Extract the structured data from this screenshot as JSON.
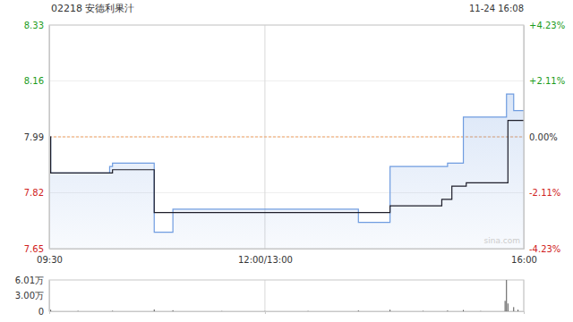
{
  "chart_data": [
    {
      "type": "line",
      "title": "02218 安德利果汁",
      "subtitle": "11-24 16:08",
      "annotation": "sina.com",
      "x": [
        0,
        1,
        42,
        44,
        73,
        86,
        215,
        237,
        273,
        277,
        280,
        288,
        290,
        318,
        319,
        323,
        330
      ],
      "xlim": [
        0,
        330
      ],
      "xticks": [
        {
          "value": 0,
          "label": "09:30"
        },
        {
          "value": 150,
          "label": "12:00/13:00"
        },
        {
          "value": 330,
          "label": "16:00"
        }
      ],
      "ylim": [
        7.65,
        8.33
      ],
      "yticks": [
        8.33,
        8.16,
        7.99,
        7.82,
        7.65
      ],
      "y2lim": [
        -4.23,
        4.23
      ],
      "y2ticks": [
        {
          "value": 4.23,
          "label": "+4.23%"
        },
        {
          "value": 2.11,
          "label": "+2.11%"
        },
        {
          "value": 0,
          "label": "0.00%"
        },
        {
          "value": -2.11,
          "label": "-2.11%"
        },
        {
          "value": -4.23,
          "label": "-4.23%"
        }
      ],
      "grid": true,
      "series": [
        {
          "color": "#6f9ce0",
          "line_style": "step",
          "values": [
            7.99,
            7.88,
            7.9,
            7.91,
            7.7,
            7.77,
            7.73,
            7.9,
            7.9,
            7.91,
            7.91,
            8.05,
            8.05,
            8.12,
            8.12,
            8.07,
            8.07
          ]
        },
        {
          "color": "#1e1e2a",
          "line_style": "step",
          "values": [
            7.99,
            7.88,
            7.88,
            7.89,
            7.76,
            7.76,
            7.76,
            7.78,
            7.8,
            7.8,
            7.84,
            7.84,
            7.85,
            7.85,
            8.04,
            8.04,
            8.04
          ]
        }
      ]
    },
    {
      "type": "bar",
      "x": [
        1,
        20,
        44,
        73,
        86,
        120,
        150,
        180,
        215,
        237,
        260,
        277,
        288,
        300,
        317,
        318,
        319,
        323,
        326
      ],
      "values": [
        3000,
        800,
        1000,
        3500,
        2000,
        500,
        400,
        600,
        1500,
        3000,
        800,
        1500,
        2500,
        500,
        20000,
        60000,
        15000,
        8000,
        3000
      ],
      "color": "#555555",
      "xlim": [
        0,
        330
      ],
      "xticks": [
        0,
        150,
        330
      ],
      "ylim": [
        0,
        60100
      ],
      "yticks": [
        {
          "value": 60100,
          "label": "6.01万"
        },
        {
          "value": 30000,
          "label": "3.00万"
        },
        0
      ],
      "tick_labels": "y"
    }
  ]
}
